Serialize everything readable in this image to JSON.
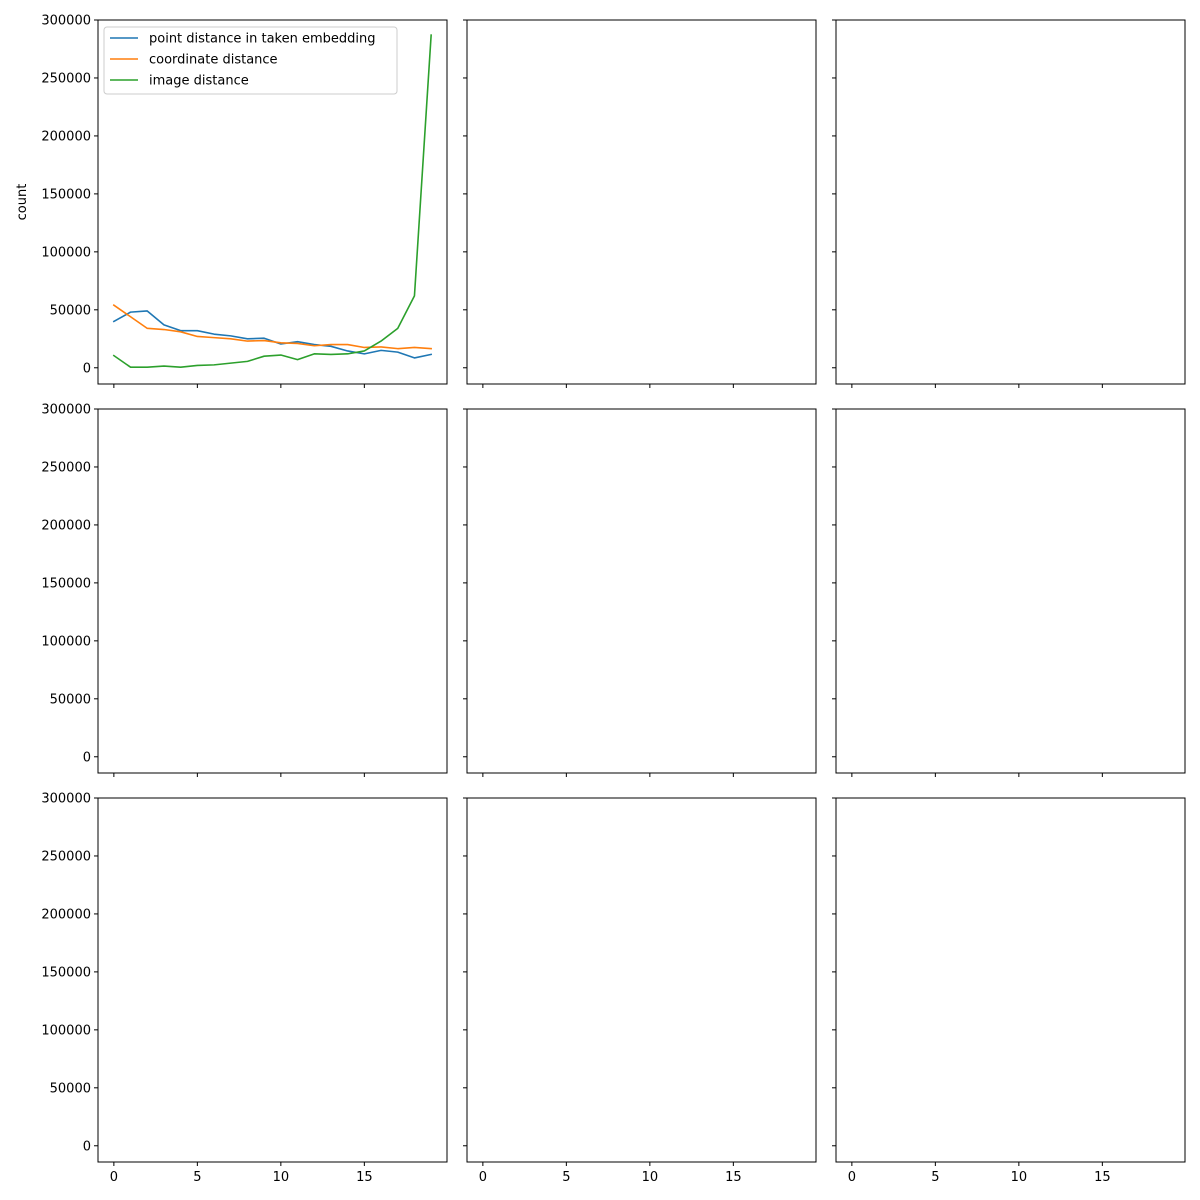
{
  "chart_data": {
    "type": "line",
    "grid": false,
    "layout": "3x3 subplot grid, shared x and y axes",
    "ylim": [
      -14000,
      300000
    ],
    "xlim": [
      -0.95,
      19.95
    ],
    "yticks": [
      0,
      50000,
      100000,
      150000,
      200000,
      250000,
      300000
    ],
    "xticks": [
      0,
      5,
      10,
      15
    ],
    "ytick_labels": [
      "0",
      "50000",
      "100000",
      "150000",
      "200000",
      "250000",
      "300000"
    ],
    "xtick_labels": [
      "0",
      "5",
      "10",
      "15"
    ],
    "ylabel": "count",
    "legend_position": "upper-left",
    "panels": [
      {
        "x": [
          0,
          1,
          2,
          3,
          4,
          5,
          6,
          7,
          8,
          9,
          10,
          11,
          12,
          13,
          14,
          15,
          16,
          17,
          18,
          19
        ],
        "series": [
          {
            "name": "point distance in taken embedding",
            "color": "#1f77b4",
            "values": [
              40000,
              48000,
              49000,
              37000,
              32000,
              32000,
              29000,
              27500,
              25000,
              25500,
              20500,
              22500,
              20000,
              18500,
              14500,
              12000,
              15000,
              13500,
              8500,
              11500
            ]
          },
          {
            "name": "coordinate distance",
            "color": "#ff7f0e",
            "values": [
              54000,
              44000,
              34000,
              33000,
              31000,
              27000,
              26000,
              25000,
              23000,
              23500,
              21500,
              21000,
              19000,
              20000,
              20000,
              17500,
              18000,
              16500,
              17500,
              16500
            ]
          },
          {
            "name": "image distance",
            "color": "#2ca02c",
            "values": [
              10500,
              500,
              500,
              1500,
              500,
              2000,
              2500,
              4000,
              5500,
              10000,
              11000,
              7000,
              12000,
              11500,
              12000,
              14500,
              23000,
              34000,
              62000,
              287000
            ]
          }
        ]
      },
      {
        "series": []
      },
      {
        "series": []
      },
      {
        "series": []
      },
      {
        "series": []
      },
      {
        "series": []
      },
      {
        "series": []
      },
      {
        "series": []
      },
      {
        "series": []
      }
    ]
  }
}
